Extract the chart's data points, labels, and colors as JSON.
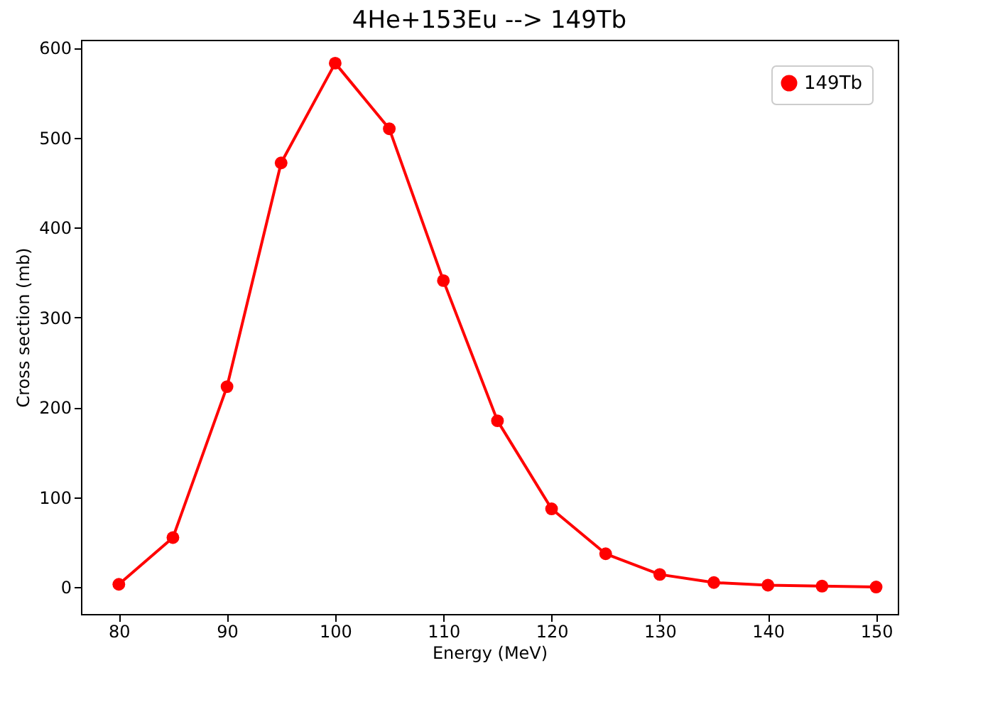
{
  "chart_data": {
    "type": "line",
    "title": "4He+153Eu --> 149Tb",
    "xlabel": "Energy (MeV)",
    "ylabel": "Cross section (mb)",
    "x": [
      80,
      85,
      90,
      95,
      100,
      105,
      110,
      115,
      120,
      125,
      130,
      135,
      140,
      145,
      150
    ],
    "series": [
      {
        "name": "149Tb",
        "color": "#ff0000",
        "values": [
          3,
          55,
          223,
          472,
          583,
          510,
          341,
          185,
          87,
          37,
          14,
          5,
          2,
          1,
          0
        ]
      }
    ],
    "xlim": [
      76.5,
      152
    ],
    "xticks": [
      80,
      90,
      100,
      110,
      120,
      130,
      140,
      150
    ],
    "ylim": [
      -30,
      609
    ],
    "yticks": [
      0,
      100,
      200,
      300,
      400,
      500,
      600
    ],
    "grid": false,
    "legend": "top right",
    "marker": "circle",
    "line_style": "solid"
  }
}
